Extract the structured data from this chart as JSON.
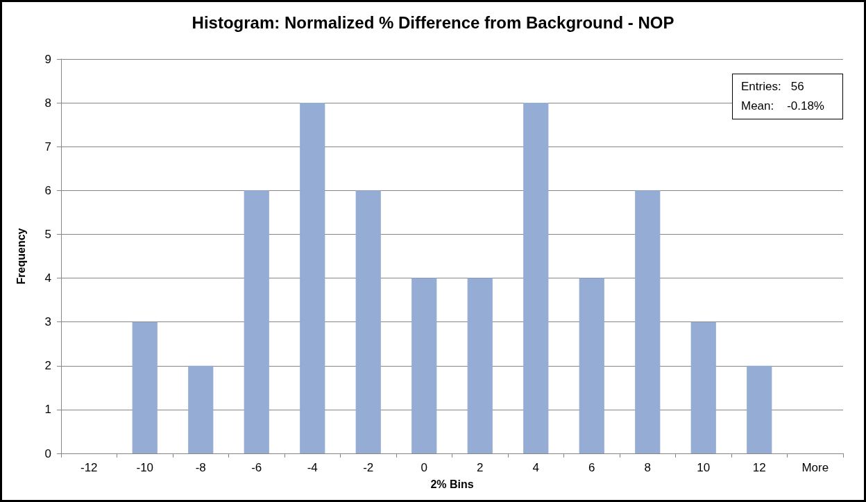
{
  "chart_data": {
    "type": "bar",
    "title": "Histogram: Normalized % Difference from Background - NOP",
    "xlabel": "2% Bins",
    "ylabel": "Frequency",
    "categories": [
      "-12",
      "-10",
      "-8",
      "-6",
      "-4",
      "-2",
      "0",
      "2",
      "4",
      "6",
      "8",
      "10",
      "12",
      "More"
    ],
    "values": [
      0,
      3,
      2,
      6,
      8,
      6,
      4,
      4,
      8,
      4,
      6,
      3,
      2,
      0
    ],
    "color": "#95acd4",
    "ylim": [
      0,
      9
    ],
    "yticks": [
      0,
      1,
      2,
      3,
      4,
      5,
      6,
      7,
      8,
      9
    ],
    "grid": "y",
    "annotations": [
      "Entries:   56",
      "Mean:    -0.18%"
    ]
  }
}
